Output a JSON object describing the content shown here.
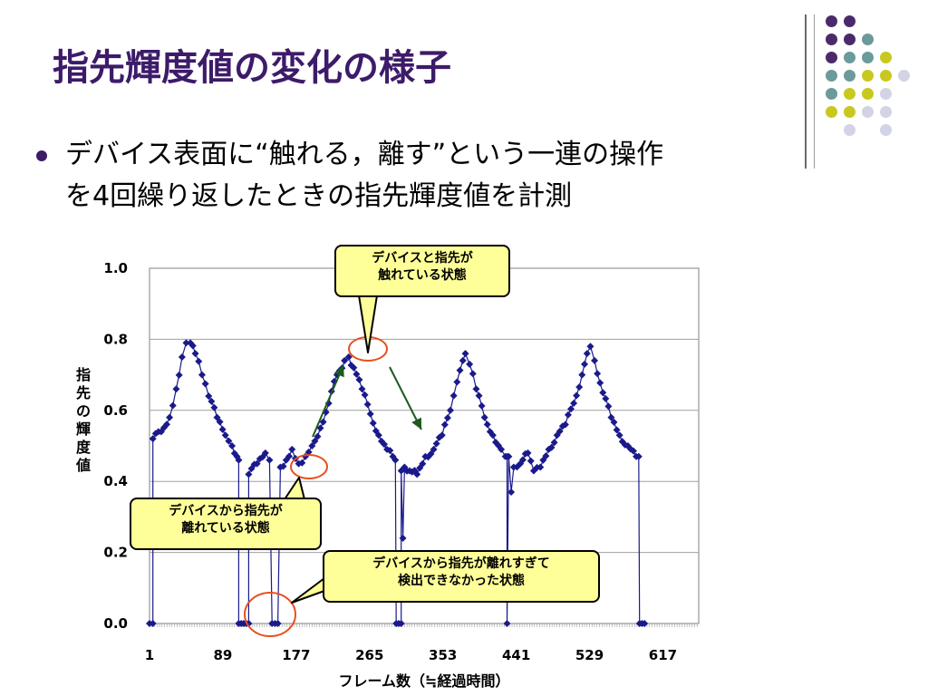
{
  "slide": {
    "title": "指先輝度値の変化の様子",
    "bullet_line1": "デバイス表面に“触れる，離す”という一連の操作",
    "bullet_line2": "を4回繰り返したときの指先輝度値を計測"
  },
  "decor": {
    "dot_colors": [
      "#4b2a6b",
      "#6b9a9a",
      "#c8c81e",
      "#d3d3e6"
    ]
  },
  "callouts": {
    "touching": [
      "デバイスと指先が",
      "触れている状態"
    ],
    "apart": [
      "デバイスから指先が",
      "離れている状態"
    ],
    "undetected": [
      "デバイスから指先が離れすぎて",
      "検出できなかった状態"
    ]
  },
  "chart_data": {
    "type": "line",
    "xlabel": "フレーム数（≒経過時間）",
    "ylabel": "指先の輝度値",
    "xlim": [
      1,
      660
    ],
    "ylim": [
      0,
      1.0
    ],
    "x_ticks": [
      "1",
      "89",
      "177",
      "265",
      "353",
      "441",
      "529",
      "617"
    ],
    "y_ticks": [
      "0.0",
      "0.2",
      "0.4",
      "0.6",
      "0.8",
      "1.0"
    ],
    "grid": true,
    "series_color": "#1a1a8c",
    "keypoints": [
      [
        1,
        0
      ],
      [
        5,
        0
      ],
      [
        5,
        0.52
      ],
      [
        15,
        0.54
      ],
      [
        25,
        0.58
      ],
      [
        33,
        0.66
      ],
      [
        40,
        0.75
      ],
      [
        45,
        0.79
      ],
      [
        50,
        0.79
      ],
      [
        56,
        0.76
      ],
      [
        64,
        0.7
      ],
      [
        72,
        0.64
      ],
      [
        82,
        0.58
      ],
      [
        92,
        0.53
      ],
      [
        100,
        0.5
      ],
      [
        106,
        0.47
      ],
      [
        108,
        0.46
      ],
      [
        108,
        0
      ],
      [
        120,
        0
      ],
      [
        120,
        0.42
      ],
      [
        130,
        0.45
      ],
      [
        140,
        0.48
      ],
      [
        145,
        0.46
      ],
      [
        148,
        0
      ],
      [
        155,
        0
      ],
      [
        158,
        0.44
      ],
      [
        165,
        0.46
      ],
      [
        172,
        0.49
      ],
      [
        180,
        0.45
      ],
      [
        188,
        0.47
      ],
      [
        196,
        0.5
      ],
      [
        206,
        0.55
      ],
      [
        216,
        0.62
      ],
      [
        226,
        0.7
      ],
      [
        235,
        0.74
      ],
      [
        240,
        0.75
      ],
      [
        246,
        0.72
      ],
      [
        256,
        0.66
      ],
      [
        266,
        0.59
      ],
      [
        276,
        0.53
      ],
      [
        286,
        0.49
      ],
      [
        293,
        0.47
      ],
      [
        296,
        0.46
      ],
      [
        297,
        0
      ],
      [
        303,
        0
      ],
      [
        303,
        0.43
      ],
      [
        305,
        0.24
      ],
      [
        307,
        0.44
      ],
      [
        313,
        0.43
      ],
      [
        322,
        0.42
      ],
      [
        332,
        0.47
      ],
      [
        342,
        0.49
      ],
      [
        352,
        0.53
      ],
      [
        362,
        0.6
      ],
      [
        370,
        0.68
      ],
      [
        377,
        0.74
      ],
      [
        380,
        0.76
      ],
      [
        385,
        0.73
      ],
      [
        393,
        0.66
      ],
      [
        403,
        0.58
      ],
      [
        413,
        0.53
      ],
      [
        423,
        0.49
      ],
      [
        428,
        0.47
      ],
      [
        430,
        0.47
      ],
      [
        430,
        0
      ],
      [
        432,
        0.47
      ],
      [
        435,
        0.37
      ],
      [
        438,
        0.44
      ],
      [
        446,
        0.45
      ],
      [
        455,
        0.48
      ],
      [
        462,
        0.43
      ],
      [
        470,
        0.44
      ],
      [
        480,
        0.49
      ],
      [
        490,
        0.53
      ],
      [
        500,
        0.56
      ],
      [
        510,
        0.62
      ],
      [
        520,
        0.7
      ],
      [
        526,
        0.76
      ],
      [
        530,
        0.78
      ],
      [
        535,
        0.74
      ],
      [
        545,
        0.65
      ],
      [
        555,
        0.58
      ],
      [
        565,
        0.53
      ],
      [
        575,
        0.5
      ],
      [
        585,
        0.47
      ],
      [
        588,
        0.47
      ],
      [
        589,
        0
      ],
      [
        595,
        0
      ]
    ]
  }
}
